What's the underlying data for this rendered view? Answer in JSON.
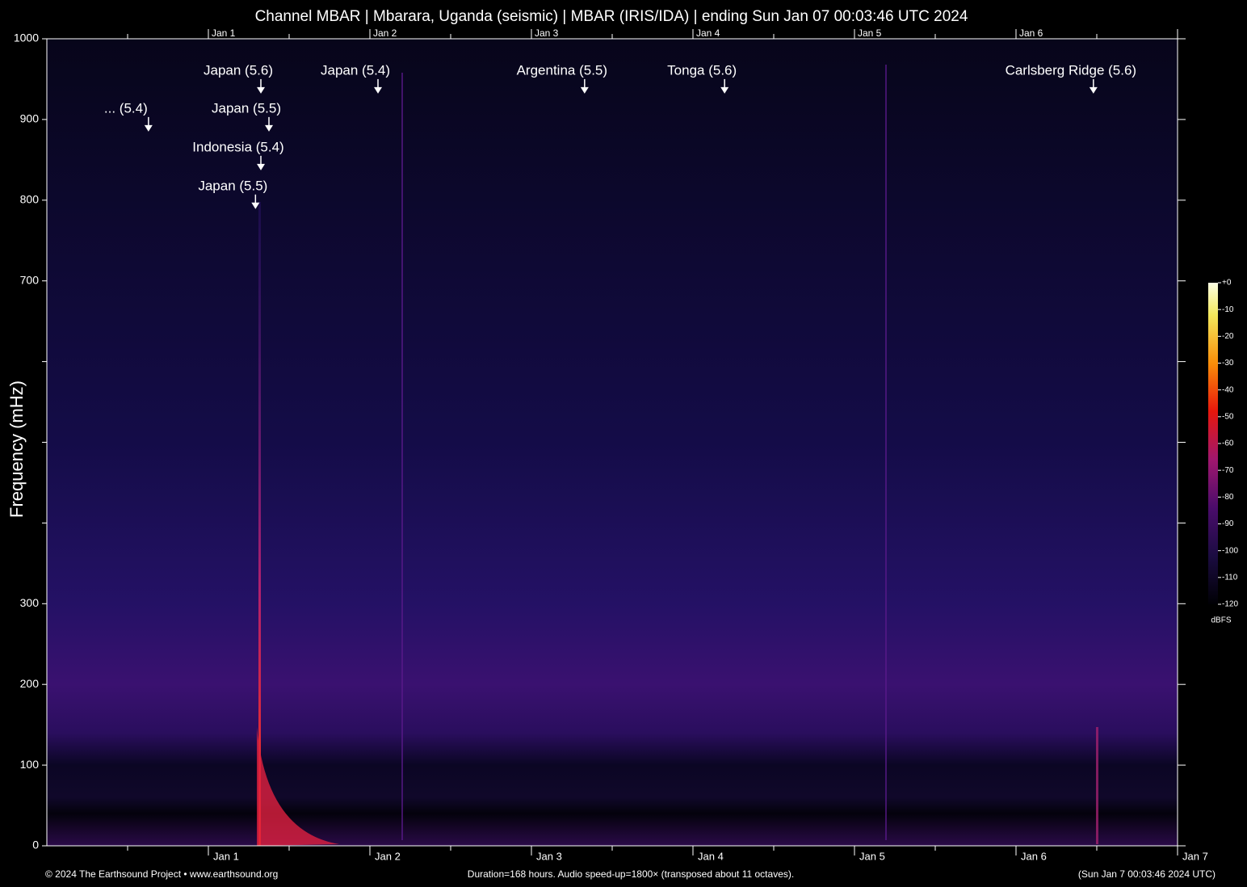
{
  "chart_data": {
    "type": "spectrogram",
    "title": "Channel MBAR | Mbarara, Uganda (seismic) | MBAR (IRIS/IDA) | ending Sun Jan 07 00:03:46 UTC 2024",
    "y_label": "Frequency (mHz)",
    "ylim": [
      0,
      1000
    ],
    "yticks": [
      0,
      100,
      200,
      300,
      {
        "value": 400,
        "label": null
      },
      {
        "value": 500,
        "label": null
      },
      {
        "value": 600,
        "label": null
      },
      700,
      800,
      900,
      1000
    ],
    "xlim": [
      0,
      168
    ],
    "xticks": [
      {
        "value": 12,
        "label": null
      },
      {
        "value": 24,
        "label": "Jan 1"
      },
      {
        "value": 36,
        "label": null
      },
      {
        "value": 48,
        "label": "Jan 2"
      },
      {
        "value": 60,
        "label": null
      },
      {
        "value": 72,
        "label": "Jan 3"
      },
      {
        "value": 84,
        "label": null
      },
      {
        "value": 96,
        "label": "Jan 4"
      },
      {
        "value": 108,
        "label": null
      },
      {
        "value": 120,
        "label": "Jan 5"
      },
      {
        "value": 132,
        "label": null
      },
      {
        "value": 144,
        "label": "Jan 6"
      },
      {
        "value": 156,
        "label": null
      },
      {
        "value": 168,
        "label": "Jan 7"
      }
    ],
    "annotations": [
      {
        "text": "... (5.4)",
        "x": 15.1,
        "y": 885
      },
      {
        "text": "Japan (5.6)",
        "x": 31.8,
        "y": 932
      },
      {
        "text": "Japan (5.5)",
        "x": 33.0,
        "y": 885
      },
      {
        "text": "Indonesia (5.4)",
        "x": 31.8,
        "y": 837
      },
      {
        "text": "Japan (5.5)",
        "x": 31.0,
        "y": 789
      },
      {
        "text": "Japan (5.4)",
        "x": 49.2,
        "y": 932
      },
      {
        "text": "Argentina (5.5)",
        "x": 79.9,
        "y": 932
      },
      {
        "text": "Tonga (5.6)",
        "x": 100.7,
        "y": 932
      },
      {
        "text": "Carlsberg Ridge (5.6)",
        "x": 155.5,
        "y": 932
      }
    ],
    "colorbar": {
      "label": "dBFS",
      "lim": [
        -120,
        0
      ],
      "ticks": [
        {
          "value": 0,
          "label": "+0"
        },
        -10,
        -20,
        -30,
        -40,
        -50,
        -60,
        -70,
        -80,
        -90,
        -100,
        -110,
        -120
      ]
    },
    "footer": {
      "left": "© 2024 The Earthsound Project • www.earthsound.org",
      "center": "Duration=168 hours. Audio speed-up=1800× (transposed about 11 octaves).",
      "right": "(Sun Jan  7 00:03:46 2024 UTC)"
    }
  }
}
